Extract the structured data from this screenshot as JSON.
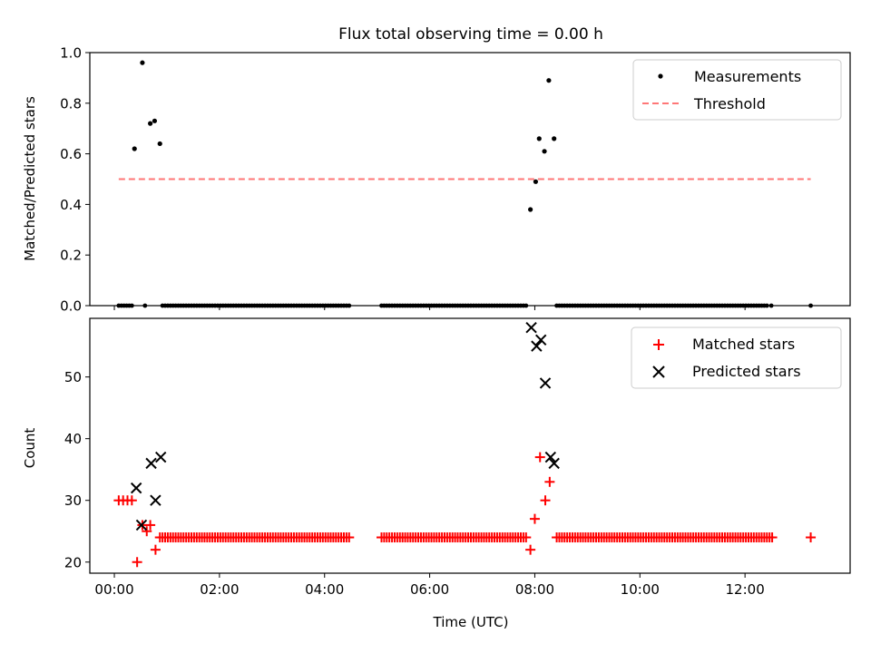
{
  "figure": {
    "title": "Flux total observing time = 0.00 h"
  },
  "chart_data": [
    {
      "type": "scatter",
      "panel": "top",
      "title": "Flux total observing time = 0.00 h",
      "xlabel": "",
      "ylabel": "Matched/Predicted stars",
      "xlim": [
        "23:32",
        "14:00"
      ],
      "ylim": [
        0.0,
        1.0
      ],
      "yticks": [
        "0.0",
        "0.2",
        "0.4",
        "0.6",
        "0.8",
        "1.0"
      ],
      "xticks": [
        "00:00",
        "02:00",
        "04:00",
        "06:00",
        "08:00",
        "10:00",
        "12:00"
      ],
      "legend_position": "top-right",
      "series": [
        {
          "name": "Measurements",
          "marker": "dot",
          "color": "#000000",
          "points": [
            {
              "x": "00:23",
              "y": 0.62
            },
            {
              "x": "00:32",
              "y": 0.96
            },
            {
              "x": "00:41",
              "y": 0.72
            },
            {
              "x": "00:46",
              "y": 0.73
            },
            {
              "x": "00:52",
              "y": 0.64
            },
            {
              "x": "07:55",
              "y": 0.38
            },
            {
              "x": "08:01",
              "y": 0.49
            },
            {
              "x": "08:05",
              "y": 0.66
            },
            {
              "x": "08:11",
              "y": 0.61
            },
            {
              "x": "08:16",
              "y": 0.89
            },
            {
              "x": "08:22",
              "y": 0.66
            }
          ],
          "zero_points": {
            "note": "many measurements at 0.0",
            "runs": [
              {
                "from": "00:05",
                "to": "00:20",
                "step_min": 3
              },
              {
                "from": "00:55",
                "to": "04:30",
                "step_min": 3
              },
              {
                "from": "05:05",
                "to": "07:52",
                "step_min": 3
              },
              {
                "from": "08:25",
                "to": "12:25",
                "step_min": 3
              }
            ],
            "extra": [
              "00:35",
              "12:30",
              "13:15"
            ]
          }
        },
        {
          "name": "Threshold",
          "marker": "dashed-line",
          "color": "#ff7777",
          "points": [
            {
              "x": "00:05",
              "y": 0.5
            },
            {
              "x": "13:15",
              "y": 0.5
            }
          ]
        }
      ]
    },
    {
      "type": "scatter",
      "panel": "bottom",
      "xlabel": "Time (UTC)",
      "ylabel": "Count",
      "xlim": [
        "23:32",
        "14:00"
      ],
      "ylim": [
        18.2,
        59.5
      ],
      "yticks": [
        "20",
        "30",
        "40",
        "50"
      ],
      "xticks": [
        "00:00",
        "02:00",
        "04:00",
        "06:00",
        "08:00",
        "10:00",
        "12:00"
      ],
      "legend_position": "top-right",
      "series": [
        {
          "name": "Matched stars",
          "marker": "plus",
          "color": "#ff0000",
          "points": [
            {
              "x": "00:05",
              "y": 30
            },
            {
              "x": "00:10",
              "y": 30
            },
            {
              "x": "00:15",
              "y": 30
            },
            {
              "x": "00:20",
              "y": 30
            },
            {
              "x": "00:26",
              "y": 20
            },
            {
              "x": "00:32",
              "y": 26
            },
            {
              "x": "00:37",
              "y": 25
            },
            {
              "x": "00:41",
              "y": 26
            },
            {
              "x": "00:47",
              "y": 22
            },
            {
              "x": "07:55",
              "y": 22
            },
            {
              "x": "08:00",
              "y": 27
            },
            {
              "x": "08:06",
              "y": 37
            },
            {
              "x": "08:12",
              "y": 30
            },
            {
              "x": "08:17",
              "y": 33
            }
          ],
          "baseline_runs": {
            "y": 24,
            "runs": [
              {
                "from": "00:52",
                "to": "04:30",
                "step_min": 3
              },
              {
                "from": "05:05",
                "to": "07:52",
                "step_min": 3
              },
              {
                "from": "08:25",
                "to": "12:33",
                "step_min": 3
              }
            ],
            "extra": [
              "13:15"
            ]
          }
        },
        {
          "name": "Predicted stars",
          "marker": "x",
          "color": "#000000",
          "points": [
            {
              "x": "00:25",
              "y": 32
            },
            {
              "x": "00:31",
              "y": 26
            },
            {
              "x": "00:42",
              "y": 36
            },
            {
              "x": "00:47",
              "y": 30
            },
            {
              "x": "00:53",
              "y": 37
            },
            {
              "x": "07:56",
              "y": 58
            },
            {
              "x": "08:02",
              "y": 55
            },
            {
              "x": "08:07",
              "y": 56
            },
            {
              "x": "08:12",
              "y": 49
            },
            {
              "x": "08:18",
              "y": 37
            },
            {
              "x": "08:22",
              "y": 36
            }
          ]
        }
      ]
    }
  ]
}
